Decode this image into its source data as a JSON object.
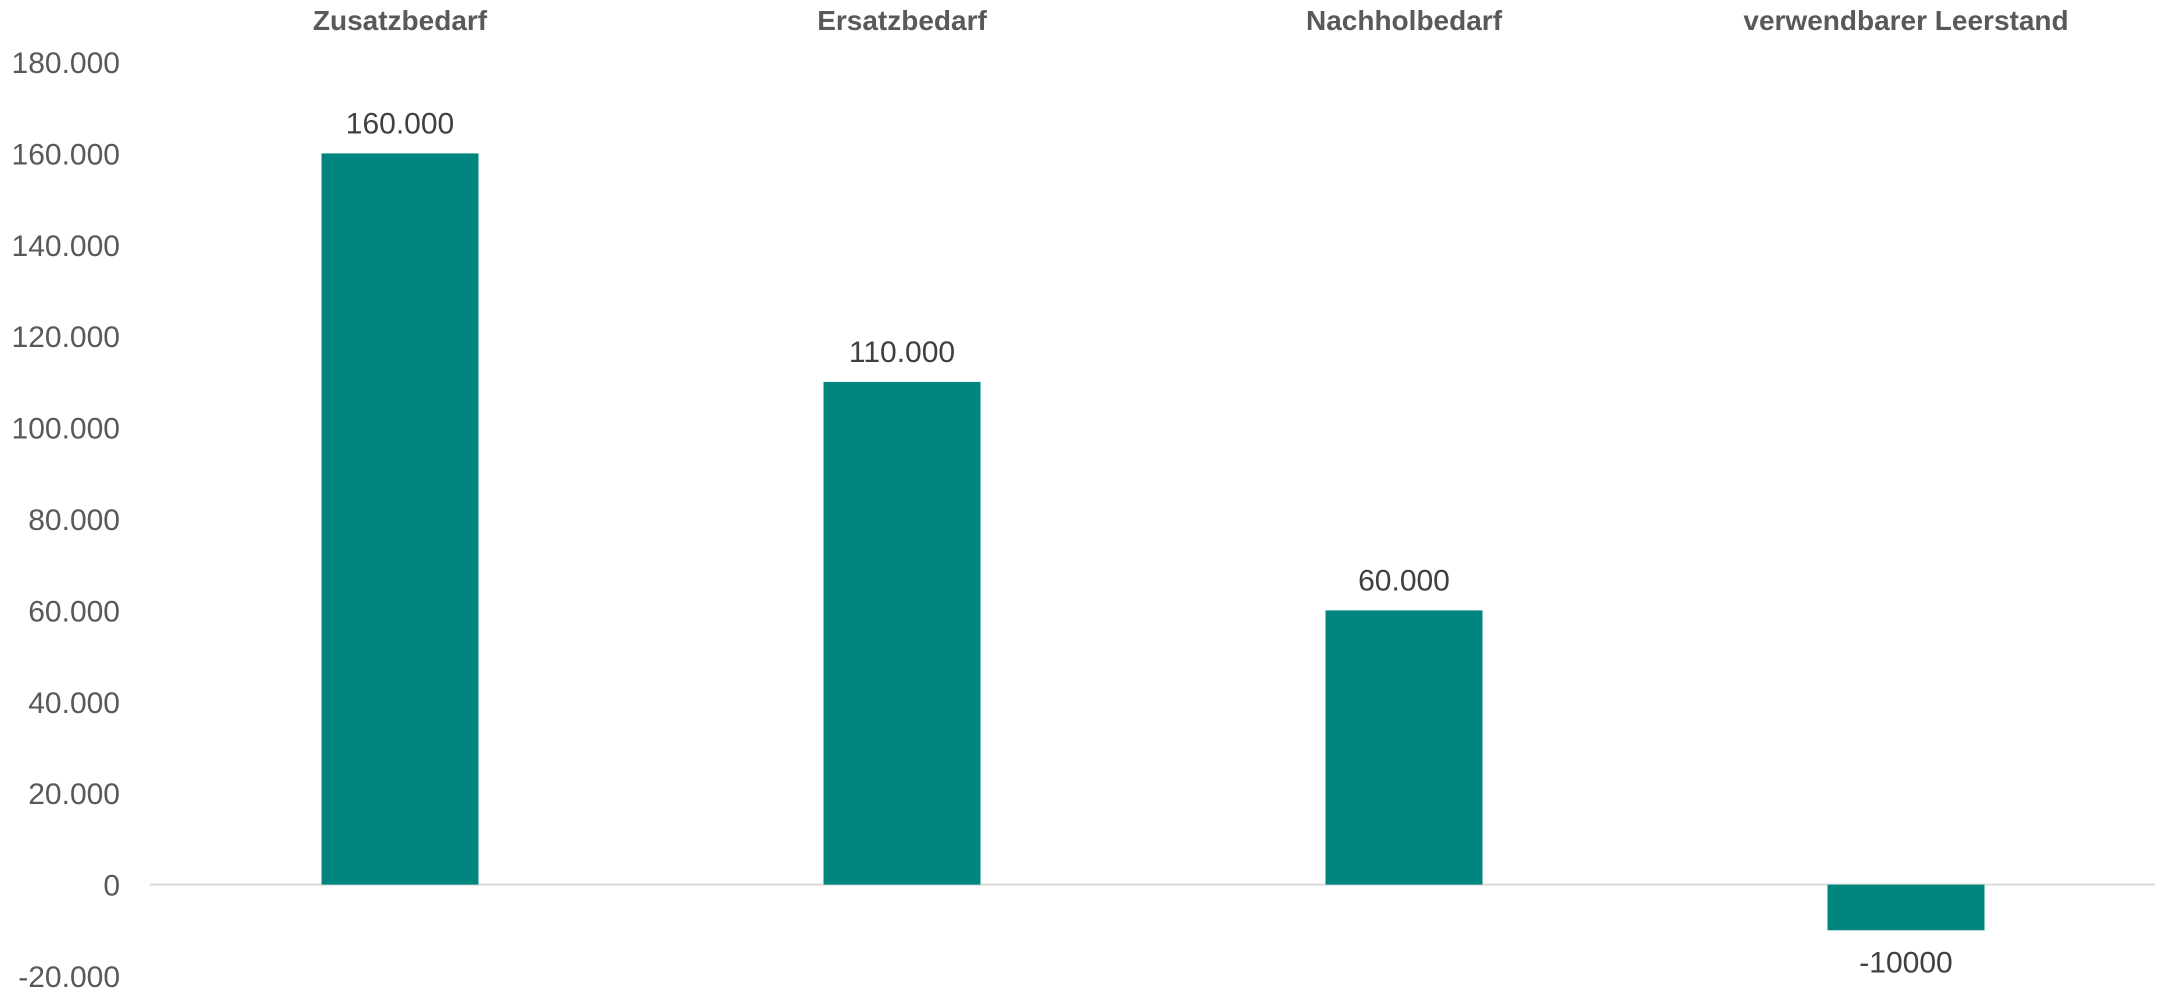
{
  "chart_data": {
    "type": "bar",
    "categories": [
      "Zusatzbedarf",
      "Ersatzbedarf",
      "Nachholbedarf",
      "verwendbarer Leerstand"
    ],
    "series": [
      {
        "values": [
          160000,
          110000,
          60000,
          -10000
        ],
        "data_labels": [
          "160.000",
          "110.000",
          "60.000",
          "-10000"
        ],
        "color": "#00857f"
      }
    ],
    "ylim": [
      -20000,
      180000
    ],
    "yticks": [
      180000,
      160000,
      140000,
      120000,
      100000,
      80000,
      60000,
      40000,
      20000,
      0,
      -20000
    ],
    "ytick_labels": [
      "180.000",
      "160.000",
      "140.000",
      "120.000",
      "100.000",
      "80.000",
      "60.000",
      "40.000",
      "20.000",
      "0",
      "-20.000"
    ],
    "category_label_position": "top",
    "grid": false,
    "legend": "none",
    "title": "",
    "xlabel": "",
    "ylabel": ""
  },
  "colors": {
    "bar": "#00857f",
    "axis_line": "#d9d9d9",
    "text": "#595959"
  }
}
